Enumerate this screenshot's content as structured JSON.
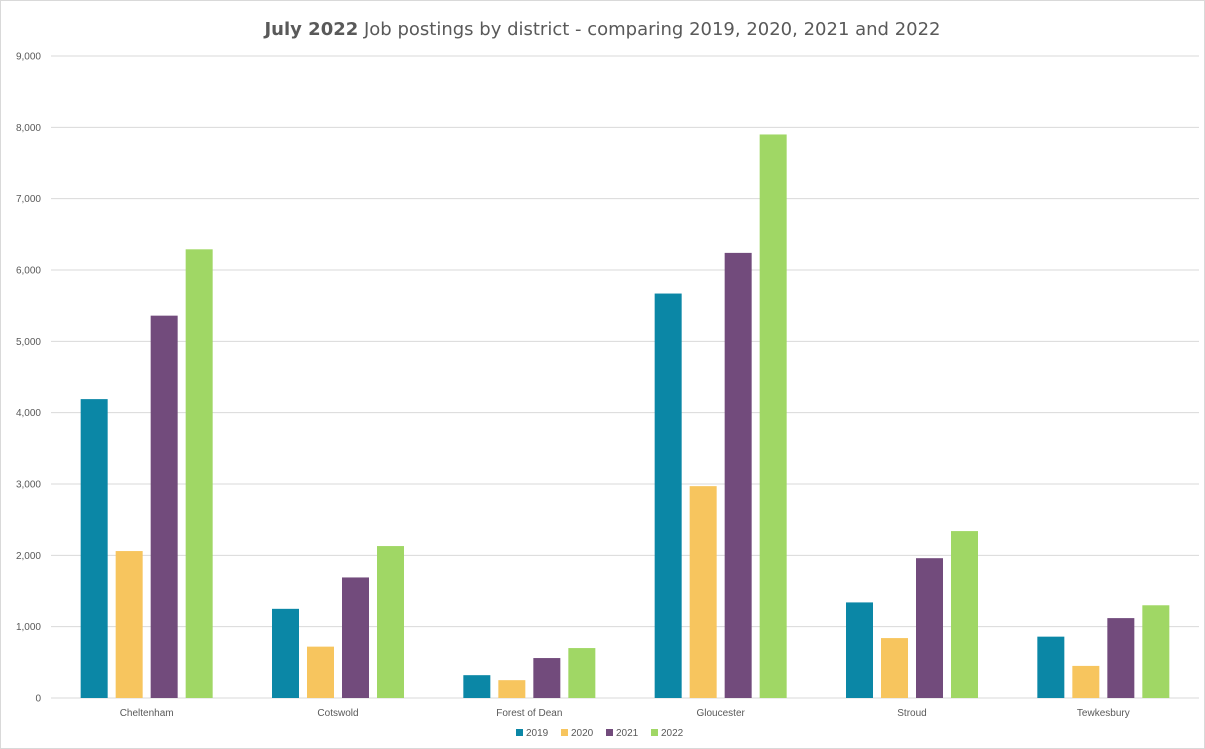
{
  "chart_data": {
    "type": "bar",
    "title_bold": "July 2022",
    "title_rest": " Job postings by district - comparing 2019, 2020, 2021 and 2022",
    "xlabel": "",
    "ylabel": "",
    "ylim": [
      0,
      9000
    ],
    "yticks": [
      0,
      1000,
      2000,
      3000,
      4000,
      5000,
      6000,
      7000,
      8000,
      9000
    ],
    "ytick_labels": [
      "0",
      "1,000",
      "2,000",
      "3,000",
      "4,000",
      "5,000",
      "6,000",
      "7,000",
      "8,000",
      "9,000"
    ],
    "grid": true,
    "legend_position": "bottom",
    "categories": [
      "Cheltenham",
      "Cotswold",
      "Forest of Dean",
      "Gloucester",
      "Stroud",
      "Tewkesbury"
    ],
    "series": [
      {
        "name": "2019",
        "color": "#0b87a6",
        "values": [
          4190,
          1250,
          320,
          5670,
          1340,
          860
        ]
      },
      {
        "name": "2020",
        "color": "#f7c55e",
        "values": [
          2060,
          720,
          250,
          2970,
          840,
          450
        ]
      },
      {
        "name": "2021",
        "color": "#724b7c",
        "values": [
          5360,
          1690,
          560,
          6240,
          1960,
          1120
        ]
      },
      {
        "name": "2022",
        "color": "#a0d765",
        "values": [
          6290,
          2130,
          700,
          7900,
          2340,
          1300
        ]
      }
    ]
  }
}
